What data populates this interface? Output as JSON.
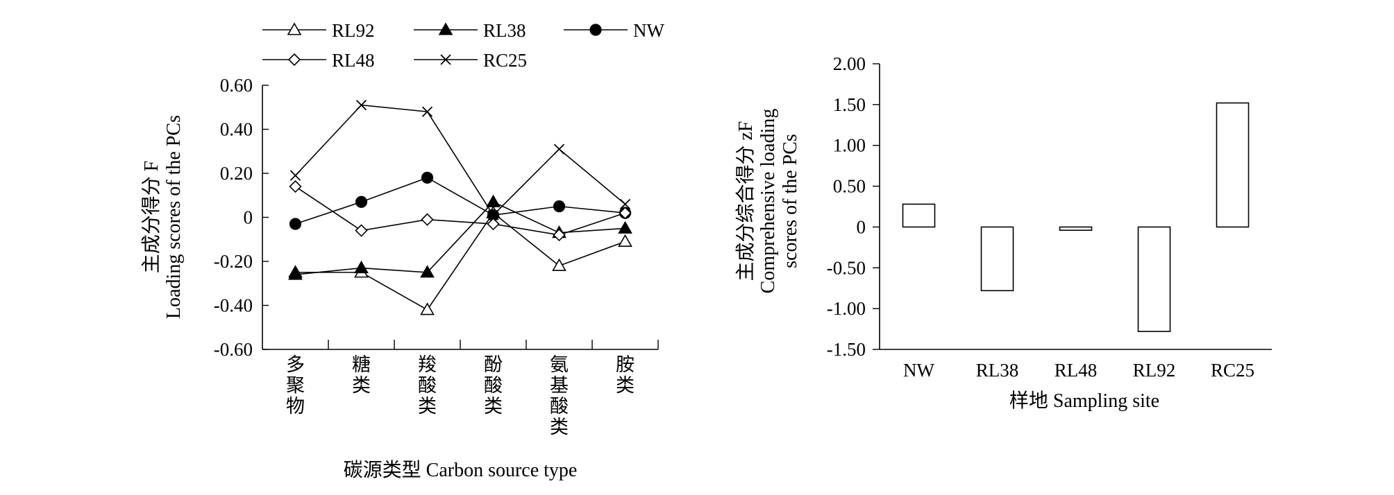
{
  "chart_data": [
    {
      "type": "line",
      "xlabel": "碳源类型 Carbon source type",
      "ylabel_lines": [
        "主成分得分 F",
        "Loading scores of the PCs"
      ],
      "categories": [
        "多聚物",
        "糖类",
        "羧酸类",
        "酚酸类",
        "氨基酸类",
        "胺类"
      ],
      "ylim": [
        -0.6,
        0.6
      ],
      "yticks": [
        "0.60",
        "0.40",
        "0.20",
        "0",
        "-0.20",
        "-0.40",
        "-0.60"
      ],
      "ytick_values": [
        0.6,
        0.4,
        0.2,
        0,
        -0.2,
        -0.4,
        -0.6
      ],
      "legend_position": "top",
      "series": [
        {
          "name": "RL92",
          "marker": "triangle-open",
          "values": [
            -0.25,
            -0.25,
            -0.42,
            0.02,
            -0.22,
            -0.11
          ]
        },
        {
          "name": "RL38",
          "marker": "triangle-filled",
          "values": [
            -0.26,
            -0.23,
            -0.25,
            0.07,
            -0.07,
            -0.05
          ]
        },
        {
          "name": "NW",
          "marker": "circle-filled",
          "values": [
            -0.03,
            0.07,
            0.18,
            0.01,
            0.05,
            0.02
          ]
        },
        {
          "name": "RL48",
          "marker": "diamond-open",
          "values": [
            0.14,
            -0.06,
            -0.01,
            -0.03,
            -0.08,
            0.02
          ]
        },
        {
          "name": "RC25",
          "marker": "cross",
          "values": [
            0.19,
            0.51,
            0.48,
            0.01,
            0.31,
            0.06
          ]
        }
      ]
    },
    {
      "type": "bar",
      "xlabel": "样地 Sampling site",
      "ylabel_lines": [
        "主成分综合得分 zF",
        "Comprehensive loading",
        "scores of the PCs"
      ],
      "categories": [
        "NW",
        "RL38",
        "RL48",
        "RL92",
        "RC25"
      ],
      "values": [
        0.28,
        -0.78,
        -0.04,
        -1.28,
        1.52
      ],
      "ylim": [
        -1.5,
        2.0
      ],
      "yticks": [
        "2.00",
        "1.50",
        "1.00",
        "0.50",
        "0",
        "-0.50",
        "-1.00",
        "-1.50"
      ],
      "ytick_values": [
        2.0,
        1.5,
        1.0,
        0.5,
        0,
        -0.5,
        -1.0,
        -1.5
      ]
    }
  ]
}
